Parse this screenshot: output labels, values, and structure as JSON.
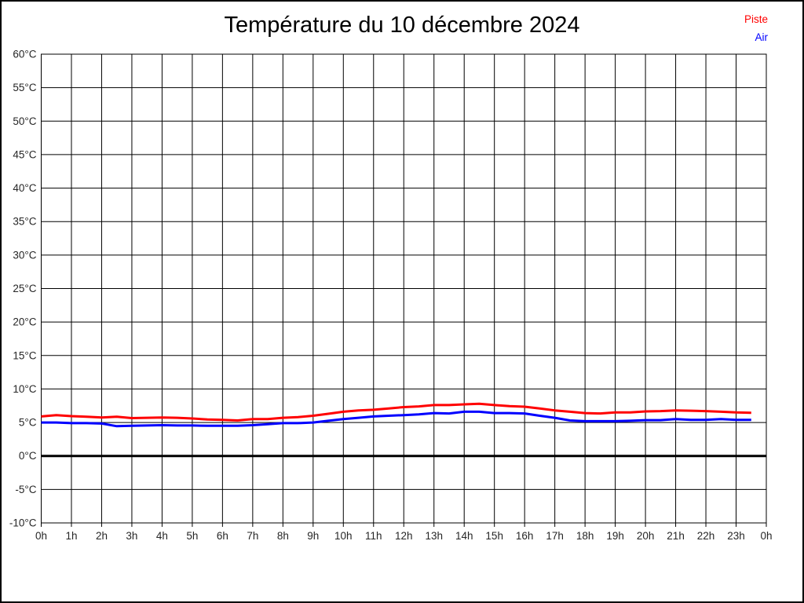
{
  "title": "Température du 10 décembre 2024",
  "legend": [
    {
      "label": "Piste",
      "color": "#ff0000"
    },
    {
      "label": "Air",
      "color": "#0000ff"
    }
  ],
  "chart_data": {
    "type": "line",
    "title": "Température du 10 décembre 2024",
    "xlabel": "",
    "ylabel": "°C",
    "xlim": [
      0,
      24
    ],
    "ylim": [
      -10,
      60
    ],
    "ytick_step": 5,
    "grid": true,
    "zero_line_emphasized": true,
    "legend_position": "top-right",
    "ytick_labels": [
      "60°C",
      "55°C",
      "50°C",
      "45°C",
      "40°C",
      "35°C",
      "30°C",
      "25°C",
      "20°C",
      "15°C",
      "10°C",
      "5°C",
      "0°C",
      "-5°C",
      "-10°C"
    ],
    "xtick_labels": [
      "0h",
      "1h",
      "2h",
      "3h",
      "4h",
      "5h",
      "6h",
      "7h",
      "8h",
      "9h",
      "10h",
      "11h",
      "12h",
      "13h",
      "14h",
      "15h",
      "16h",
      "17h",
      "18h",
      "19h",
      "20h",
      "21h",
      "22h",
      "23h",
      "0h"
    ],
    "x": [
      0,
      0.5,
      1,
      1.5,
      2,
      2.5,
      3,
      3.5,
      4,
      4.5,
      5,
      5.5,
      6,
      6.5,
      7,
      7.5,
      8,
      8.5,
      9,
      9.5,
      10,
      10.5,
      11,
      11.5,
      12,
      12.5,
      13,
      13.5,
      14,
      14.5,
      15,
      15.5,
      16,
      16.5,
      17,
      17.5,
      18,
      18.5,
      19,
      19.5,
      20,
      20.5,
      21,
      21.5,
      22,
      22.5,
      23,
      23.5
    ],
    "series": [
      {
        "name": "Piste",
        "color": "#ff0000",
        "values": [
          5.9,
          6.1,
          5.95,
          5.85,
          5.75,
          5.85,
          5.65,
          5.7,
          5.75,
          5.7,
          5.6,
          5.45,
          5.4,
          5.3,
          5.5,
          5.5,
          5.7,
          5.8,
          6.0,
          6.3,
          6.6,
          6.8,
          6.9,
          7.1,
          7.3,
          7.4,
          7.6,
          7.6,
          7.7,
          7.8,
          7.6,
          7.45,
          7.35,
          7.1,
          6.8,
          6.6,
          6.4,
          6.35,
          6.5,
          6.5,
          6.65,
          6.7,
          6.8,
          6.75,
          6.7,
          6.6,
          6.5,
          6.45
        ]
      },
      {
        "name": "Air",
        "color": "#0000ff",
        "values": [
          5.0,
          5.0,
          4.9,
          4.9,
          4.85,
          4.45,
          4.5,
          4.55,
          4.6,
          4.55,
          4.55,
          4.5,
          4.5,
          4.5,
          4.6,
          4.75,
          4.9,
          4.9,
          5.0,
          5.25,
          5.5,
          5.7,
          5.9,
          6.0,
          6.1,
          6.2,
          6.4,
          6.35,
          6.6,
          6.6,
          6.4,
          6.4,
          6.35,
          6.0,
          5.7,
          5.3,
          5.2,
          5.2,
          5.2,
          5.25,
          5.35,
          5.35,
          5.5,
          5.4,
          5.4,
          5.5,
          5.4,
          5.4
        ]
      }
    ]
  }
}
